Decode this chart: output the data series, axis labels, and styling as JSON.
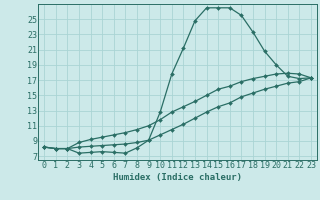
{
  "xlabel": "Humidex (Indice chaleur)",
  "bg_color": "#cce9e9",
  "line_color": "#2a6e65",
  "grid_color": "#aad4d4",
  "xlim": [
    -0.5,
    23.5
  ],
  "ylim": [
    6.5,
    27.0
  ],
  "yticks": [
    7,
    9,
    11,
    13,
    15,
    17,
    19,
    21,
    23,
    25
  ],
  "xticks": [
    0,
    1,
    2,
    3,
    4,
    5,
    6,
    7,
    8,
    9,
    10,
    11,
    12,
    13,
    14,
    15,
    16,
    17,
    18,
    19,
    20,
    21,
    22,
    23
  ],
  "line1_x": [
    0,
    1,
    2,
    3,
    4,
    5,
    6,
    7,
    8,
    9,
    10,
    11,
    12,
    13,
    14,
    15,
    16,
    17,
    18,
    19,
    20,
    21,
    22,
    23
  ],
  "line1_y": [
    8.2,
    8.0,
    8.0,
    7.4,
    7.5,
    7.6,
    7.5,
    7.4,
    8.1,
    9.1,
    12.8,
    17.8,
    21.2,
    24.8,
    26.5,
    26.5,
    26.5,
    25.5,
    23.3,
    20.8,
    19.0,
    17.5,
    17.2,
    17.3
  ],
  "line2_x": [
    0,
    1,
    2,
    3,
    4,
    5,
    6,
    7,
    8,
    9,
    10,
    11,
    12,
    13,
    14,
    15,
    16,
    17,
    18,
    19,
    20,
    21,
    22,
    23
  ],
  "line2_y": [
    8.2,
    8.0,
    8.0,
    8.8,
    9.2,
    9.5,
    9.8,
    10.1,
    10.5,
    11.0,
    11.8,
    12.8,
    13.5,
    14.2,
    15.0,
    15.8,
    16.2,
    16.8,
    17.2,
    17.5,
    17.8,
    17.9,
    17.8,
    17.3
  ],
  "line3_x": [
    0,
    1,
    2,
    3,
    4,
    5,
    6,
    7,
    8,
    9,
    10,
    11,
    12,
    13,
    14,
    15,
    16,
    17,
    18,
    19,
    20,
    21,
    22,
    23
  ],
  "line3_y": [
    8.2,
    8.0,
    8.0,
    8.2,
    8.3,
    8.4,
    8.5,
    8.6,
    8.8,
    9.1,
    9.8,
    10.5,
    11.2,
    12.0,
    12.8,
    13.5,
    14.0,
    14.8,
    15.3,
    15.8,
    16.2,
    16.6,
    16.8,
    17.3
  ],
  "tick_fontsize": 6.0,
  "xlabel_fontsize": 6.5,
  "marker_size": 2.0
}
